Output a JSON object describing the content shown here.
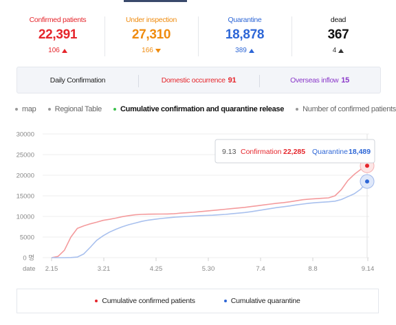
{
  "stats": [
    {
      "label": "Confirmed patients",
      "value": "22,391",
      "delta": "106",
      "direction": "up",
      "color": "#e5252b",
      "delta_color": "#e5252b"
    },
    {
      "label": "Under inspection",
      "value": "27,310",
      "delta": "166",
      "direction": "down",
      "color": "#ef8b0e",
      "delta_color": "#ef8b0e"
    },
    {
      "label": "Quarantine",
      "value": "18,878",
      "delta": "389",
      "direction": "up",
      "color": "#2d66d6",
      "delta_color": "#2d66d6"
    },
    {
      "label": "dead",
      "value": "367",
      "delta": "4",
      "direction": "up",
      "color": "#111111",
      "delta_color": "#333333"
    }
  ],
  "summary": {
    "daily_label": "Daily Confirmation",
    "domestic_label": "Domestic occurrence",
    "domestic_value": "91",
    "overseas_label": "Overseas inflow",
    "overseas_value": "15"
  },
  "tabs": [
    {
      "label": "map",
      "active": false
    },
    {
      "label": "Regional Table",
      "active": false
    },
    {
      "label": "Cumulative confirmation and quarantine release",
      "active": true
    },
    {
      "label": "Number of confirmed patients per",
      "active": false
    }
  ],
  "chart_data": {
    "type": "line",
    "xlabel": "date",
    "x_ticks": [
      "2.15",
      "3.21",
      "4.25",
      "5.30",
      "7.4",
      "8.8",
      "9.14"
    ],
    "y_ticks": [
      "30000",
      "25000",
      "20000",
      "15000",
      "10000",
      "5000",
      "0 명"
    ],
    "ylim": [
      0,
      30000
    ],
    "grid": true,
    "series": [
      {
        "name": "Cumulative confirmed patients",
        "color": "#f49a9c",
        "values": [
          0,
          300,
          1800,
          5000,
          7100,
          7700,
          8200,
          8600,
          9050,
          9300,
          9600,
          9950,
          10200,
          10400,
          10500,
          10550,
          10560,
          10580,
          10600,
          10650,
          10800,
          10900,
          11000,
          11150,
          11300,
          11450,
          11600,
          11750,
          11900,
          12050,
          12200,
          12400,
          12600,
          12800,
          13000,
          13200,
          13350,
          13550,
          13800,
          14050,
          14200,
          14300,
          14400,
          14500,
          15000,
          16500,
          18700,
          20200,
          21400,
          22285
        ]
      },
      {
        "name": "Cumulative quarantine",
        "color": "#a8c0ee",
        "values": [
          0,
          0,
          0,
          30,
          150,
          900,
          2500,
          4200,
          5300,
          6200,
          6900,
          7500,
          8000,
          8400,
          8800,
          9100,
          9300,
          9500,
          9650,
          9800,
          9900,
          10000,
          10100,
          10200,
          10250,
          10300,
          10400,
          10500,
          10650,
          10800,
          10950,
          11150,
          11400,
          11650,
          11900,
          12150,
          12350,
          12550,
          12800,
          13000,
          13200,
          13350,
          13450,
          13550,
          13700,
          14100,
          14800,
          15500,
          16600,
          18489
        ]
      }
    ],
    "tooltip": {
      "date": "9.13",
      "confirmed_label": "Confirmation",
      "confirmed_value": "22,285",
      "quarantine_label": "Quarantine",
      "quarantine_value": "18,489"
    }
  },
  "legend": [
    {
      "label": "Cumulative confirmed patients",
      "color": "#e5252b"
    },
    {
      "label": "Cumulative quarantine",
      "color": "#2d66d6"
    }
  ]
}
